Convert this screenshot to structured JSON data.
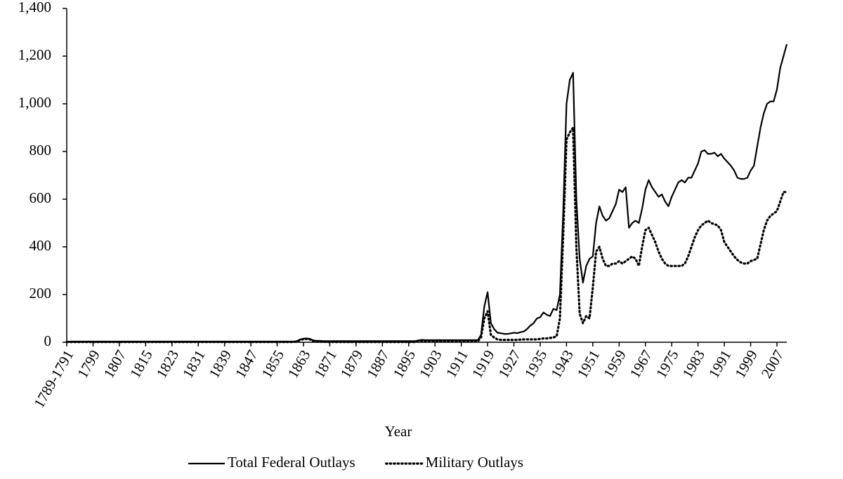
{
  "chart_data": {
    "type": "line",
    "x_label": "Year",
    "categories": [
      "1789-1791",
      null,
      null,
      null,
      null,
      null,
      null,
      null,
      "1799",
      null,
      null,
      null,
      null,
      null,
      null,
      null,
      "1807",
      null,
      null,
      null,
      null,
      null,
      null,
      null,
      "1815",
      null,
      null,
      null,
      null,
      null,
      null,
      null,
      "1823",
      null,
      null,
      null,
      null,
      null,
      null,
      null,
      "1831",
      null,
      null,
      null,
      null,
      null,
      null,
      null,
      "1839",
      null,
      null,
      null,
      null,
      null,
      null,
      null,
      "1847",
      null,
      null,
      null,
      null,
      null,
      null,
      null,
      "1855",
      null,
      null,
      null,
      null,
      null,
      null,
      null,
      "1863",
      null,
      null,
      null,
      null,
      null,
      null,
      null,
      "1871",
      null,
      null,
      null,
      null,
      null,
      null,
      null,
      "1879",
      null,
      null,
      null,
      null,
      null,
      null,
      null,
      "1887",
      null,
      null,
      null,
      null,
      null,
      null,
      null,
      "1895",
      null,
      null,
      null,
      null,
      null,
      null,
      null,
      "1903",
      null,
      null,
      null,
      null,
      null,
      null,
      null,
      "1911",
      null,
      null,
      null,
      null,
      null,
      null,
      null,
      "1919",
      null,
      null,
      null,
      null,
      null,
      null,
      null,
      "1927",
      null,
      null,
      null,
      null,
      null,
      null,
      null,
      "1935",
      null,
      null,
      null,
      null,
      null,
      null,
      null,
      "1943",
      null,
      null,
      null,
      null,
      null,
      null,
      null,
      "1951",
      null,
      null,
      null,
      null,
      null,
      null,
      null,
      "1959",
      null,
      null,
      null,
      null,
      null,
      null,
      null,
      "1967",
      null,
      null,
      null,
      null,
      null,
      null,
      null,
      "1975",
      null,
      null,
      null,
      null,
      null,
      null,
      null,
      "1983",
      null,
      null,
      null,
      null,
      null,
      null,
      null,
      "1991",
      null,
      null,
      null,
      null,
      null,
      null,
      null,
      "1999",
      null,
      null,
      null,
      null,
      null,
      null,
      null,
      "2007",
      null,
      null,
      null
    ],
    "series": [
      {
        "name": "Total Federal Outlays",
        "color": "#000000",
        "style": "solid",
        "values": [
          2,
          3,
          3,
          3,
          3,
          3,
          3,
          3,
          3,
          3,
          3,
          3,
          3,
          3,
          3,
          3,
          3,
          3,
          3,
          3,
          3,
          3,
          3,
          3,
          3,
          3,
          3,
          3,
          3,
          3,
          3,
          3,
          3,
          3,
          3,
          3,
          3,
          3,
          3,
          3,
          3,
          3,
          3,
          3,
          3,
          3,
          3,
          3,
          3,
          3,
          3,
          3,
          3,
          3,
          3,
          3,
          3,
          3,
          3,
          3,
          3,
          3,
          3,
          3,
          3,
          3,
          3,
          3,
          3,
          3,
          5,
          12,
          15,
          16,
          14,
          8,
          6,
          6,
          5,
          5,
          5,
          5,
          5,
          5,
          5,
          5,
          5,
          5,
          5,
          5,
          5,
          5,
          5,
          5,
          5,
          5,
          5,
          5,
          5,
          5,
          5,
          5,
          5,
          5,
          5,
          5,
          5,
          8,
          10,
          9,
          9,
          9,
          9,
          9,
          9,
          9,
          9,
          9,
          9,
          9,
          9,
          9,
          9,
          9,
          9,
          9,
          30,
          150,
          210,
          80,
          55,
          40,
          38,
          35,
          35,
          37,
          40,
          38,
          42,
          45,
          55,
          70,
          80,
          100,
          105,
          125,
          115,
          110,
          140,
          135,
          200,
          550,
          1000,
          1100,
          1130,
          600,
          350,
          250,
          320,
          350,
          360,
          500,
          570,
          530,
          510,
          520,
          550,
          580,
          640,
          630,
          650,
          480,
          500,
          510,
          500,
          560,
          640,
          680,
          650,
          630,
          610,
          620,
          590,
          570,
          610,
          640,
          670,
          680,
          670,
          690,
          690,
          720,
          750,
          800,
          805,
          790,
          790,
          795,
          780,
          790,
          770,
          755,
          740,
          720,
          690,
          685,
          685,
          690,
          720,
          740,
          820,
          900,
          960,
          1000,
          1010,
          1010,
          1060,
          1150,
          1200,
          1250
        ]
      },
      {
        "name": "Military Outlays",
        "color": "#000000",
        "style": "dotted",
        "values": [
          1,
          1,
          1,
          1,
          1,
          1,
          1,
          1,
          1,
          1,
          1,
          1,
          1,
          1,
          1,
          1,
          1,
          1,
          1,
          1,
          1,
          1,
          1,
          1,
          1,
          1,
          1,
          1,
          1,
          1,
          1,
          1,
          1,
          1,
          1,
          1,
          1,
          1,
          1,
          1,
          1,
          1,
          1,
          1,
          1,
          1,
          1,
          1,
          1,
          1,
          1,
          1,
          1,
          1,
          1,
          1,
          1,
          1,
          1,
          1,
          1,
          1,
          1,
          1,
          1,
          1,
          1,
          1,
          1,
          1,
          3,
          10,
          13,
          14,
          12,
          4,
          2,
          2,
          2,
          1,
          1,
          1,
          1,
          1,
          1,
          1,
          1,
          1,
          1,
          1,
          1,
          1,
          1,
          1,
          1,
          1,
          1,
          1,
          1,
          1,
          1,
          1,
          1,
          1,
          1,
          1,
          1,
          5,
          6,
          4,
          4,
          4,
          4,
          4,
          4,
          4,
          4,
          4,
          4,
          4,
          4,
          4,
          4,
          4,
          4,
          4,
          20,
          100,
          130,
          30,
          20,
          12,
          10,
          10,
          10,
          10,
          10,
          10,
          11,
          12,
          12,
          12,
          12,
          12,
          14,
          16,
          16,
          18,
          20,
          25,
          100,
          450,
          850,
          880,
          900,
          400,
          120,
          80,
          110,
          100,
          230,
          380,
          400,
          350,
          320,
          320,
          330,
          330,
          340,
          330,
          340,
          350,
          360,
          350,
          320,
          400,
          470,
          480,
          450,
          420,
          380,
          350,
          330,
          320,
          320,
          320,
          320,
          320,
          330,
          360,
          400,
          440,
          470,
          490,
          500,
          510,
          500,
          495,
          490,
          470,
          420,
          400,
          380,
          360,
          345,
          335,
          330,
          330,
          340,
          345,
          350,
          410,
          470,
          510,
          530,
          540,
          550,
          590,
          630,
          630
        ]
      }
    ],
    "ylim": [
      0,
      1400
    ],
    "yticks": [
      0,
      200,
      400,
      600,
      800,
      {
        "value": 1000,
        "label": "1,000"
      },
      {
        "value": 1200,
        "label": "1,200"
      },
      {
        "value": 1400,
        "label": "1,400"
      }
    ],
    "grid": false,
    "legend": "bottom"
  }
}
